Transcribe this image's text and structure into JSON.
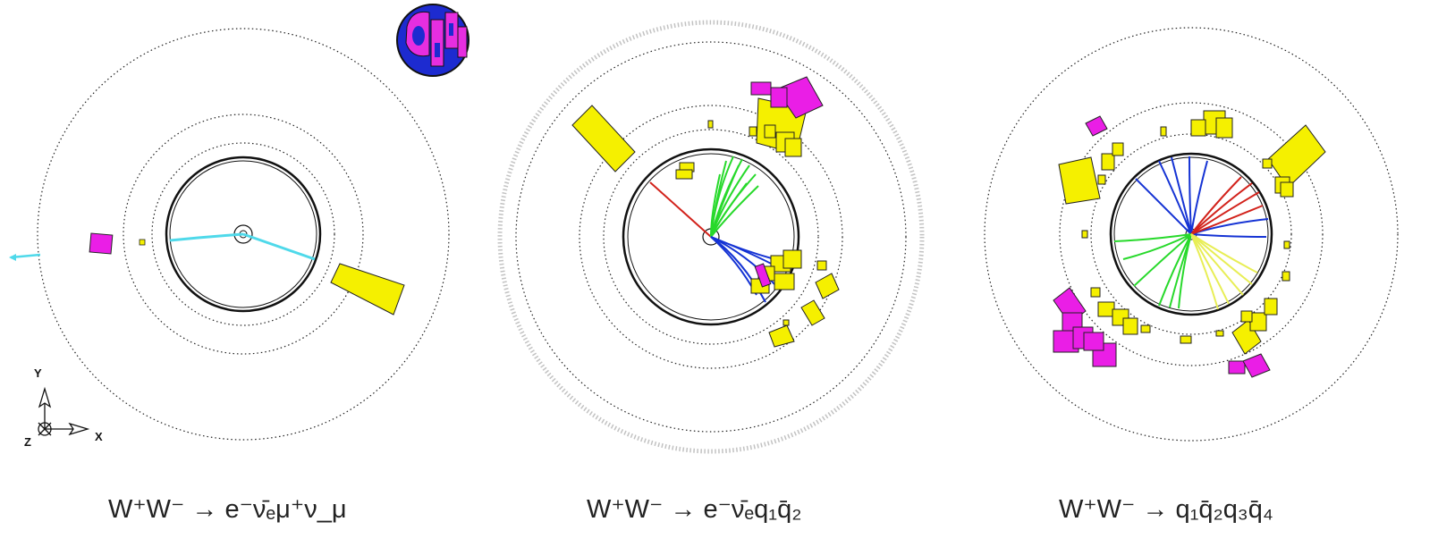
{
  "panels": [
    {
      "caption": {
        "lead": "W",
        "sup1": "+",
        "mid": "W",
        "sup2": "−",
        "arrow": " → ",
        "final": "e⁻ν̄ₑμ⁺ν_μ"
      },
      "caption_text": "W⁺W⁻ → e⁻ν̄ₑμ⁺ν_μ"
    },
    {
      "caption_text": "W⁺W⁻ → e⁻ν̄ₑq₁q̄₂"
    },
    {
      "caption_text": "W⁺W⁻ → q₁q̄₂q₃q̄₄"
    }
  ],
  "axes_labels": {
    "y": "Y",
    "x": "X",
    "z": "Z"
  },
  "colors": {
    "calorimeter": "#f5f000",
    "electromagnetic_deposit": "#ea1ee6",
    "track_muon": "#4fd9ea",
    "track_red": "#d2221b",
    "track_green": "#27d92b",
    "track_blue": "#1533d4",
    "track_yellow": "#e8ee55",
    "detector_outline": "#111111",
    "logo_fill": "#e62ee0",
    "logo_bg": "#1d2bd0"
  },
  "icons": [
    "opal-logo",
    "coordinate-axes-icon"
  ]
}
